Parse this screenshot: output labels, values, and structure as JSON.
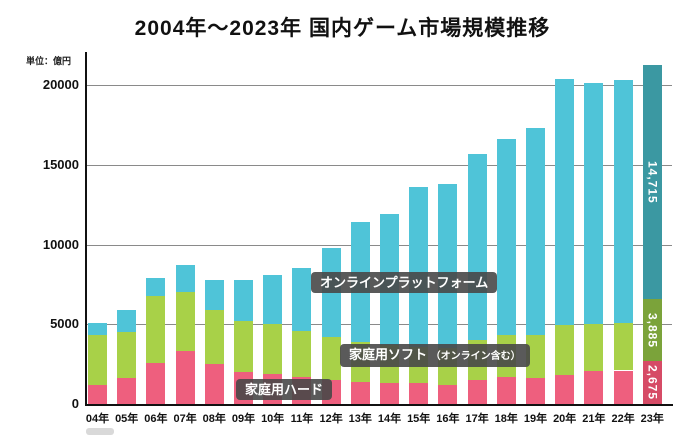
{
  "chart_data": {
    "type": "bar",
    "stacked": true,
    "title": "2004年〜2023年 国内ゲーム市場規模推移",
    "unit_label": "単位：億円",
    "categories": [
      "04年",
      "05年",
      "06年",
      "07年",
      "08年",
      "09年",
      "10年",
      "11年",
      "12年",
      "13年",
      "14年",
      "15年",
      "16年",
      "17年",
      "18年",
      "19年",
      "20年",
      "21年",
      "22年",
      "23年"
    ],
    "series": [
      {
        "name": "家庭用ハード",
        "color": "#ee5f7e",
        "final_bar_color": "#d64b66",
        "values": [
          1200,
          1600,
          2600,
          3300,
          2500,
          2000,
          1900,
          1700,
          1500,
          1400,
          1300,
          1300,
          1200,
          1500,
          1700,
          1600,
          1800,
          2100,
          2100,
          2675
        ]
      },
      {
        "name": "家庭用ソフト（オンライン含む）",
        "color": "#a8d148",
        "final_bar_color": "#7ba33a",
        "values": [
          3100,
          2900,
          4200,
          3700,
          3400,
          3200,
          3100,
          2900,
          2700,
          2500,
          2400,
          2300,
          2300,
          2500,
          2600,
          2700,
          3150,
          2900,
          2950,
          3885
        ]
      },
      {
        "name": "オンラインプラットフォーム",
        "color": "#4fc4d8",
        "final_bar_color": "#3b98a2",
        "values": [
          800,
          1400,
          1100,
          1700,
          1900,
          2600,
          3100,
          3900,
          5600,
          7500,
          8200,
          10000,
          10300,
          11700,
          12300,
          13000,
          15400,
          15100,
          15250,
          14715
        ]
      }
    ],
    "final_bar_value_labels": [
      "2,675",
      "3,885",
      "14,715"
    ],
    "yticks": [
      0,
      5000,
      10000,
      15000,
      20000
    ],
    "ylim": [
      0,
      22000
    ],
    "grid": true,
    "legend_position": "inline-badges",
    "series_labels": {
      "hard": "家庭用ハード",
      "soft_main": "家庭用ソフト ",
      "soft_sub": "（オンライン含む）",
      "online": "オンラインプラットフォーム"
    }
  }
}
